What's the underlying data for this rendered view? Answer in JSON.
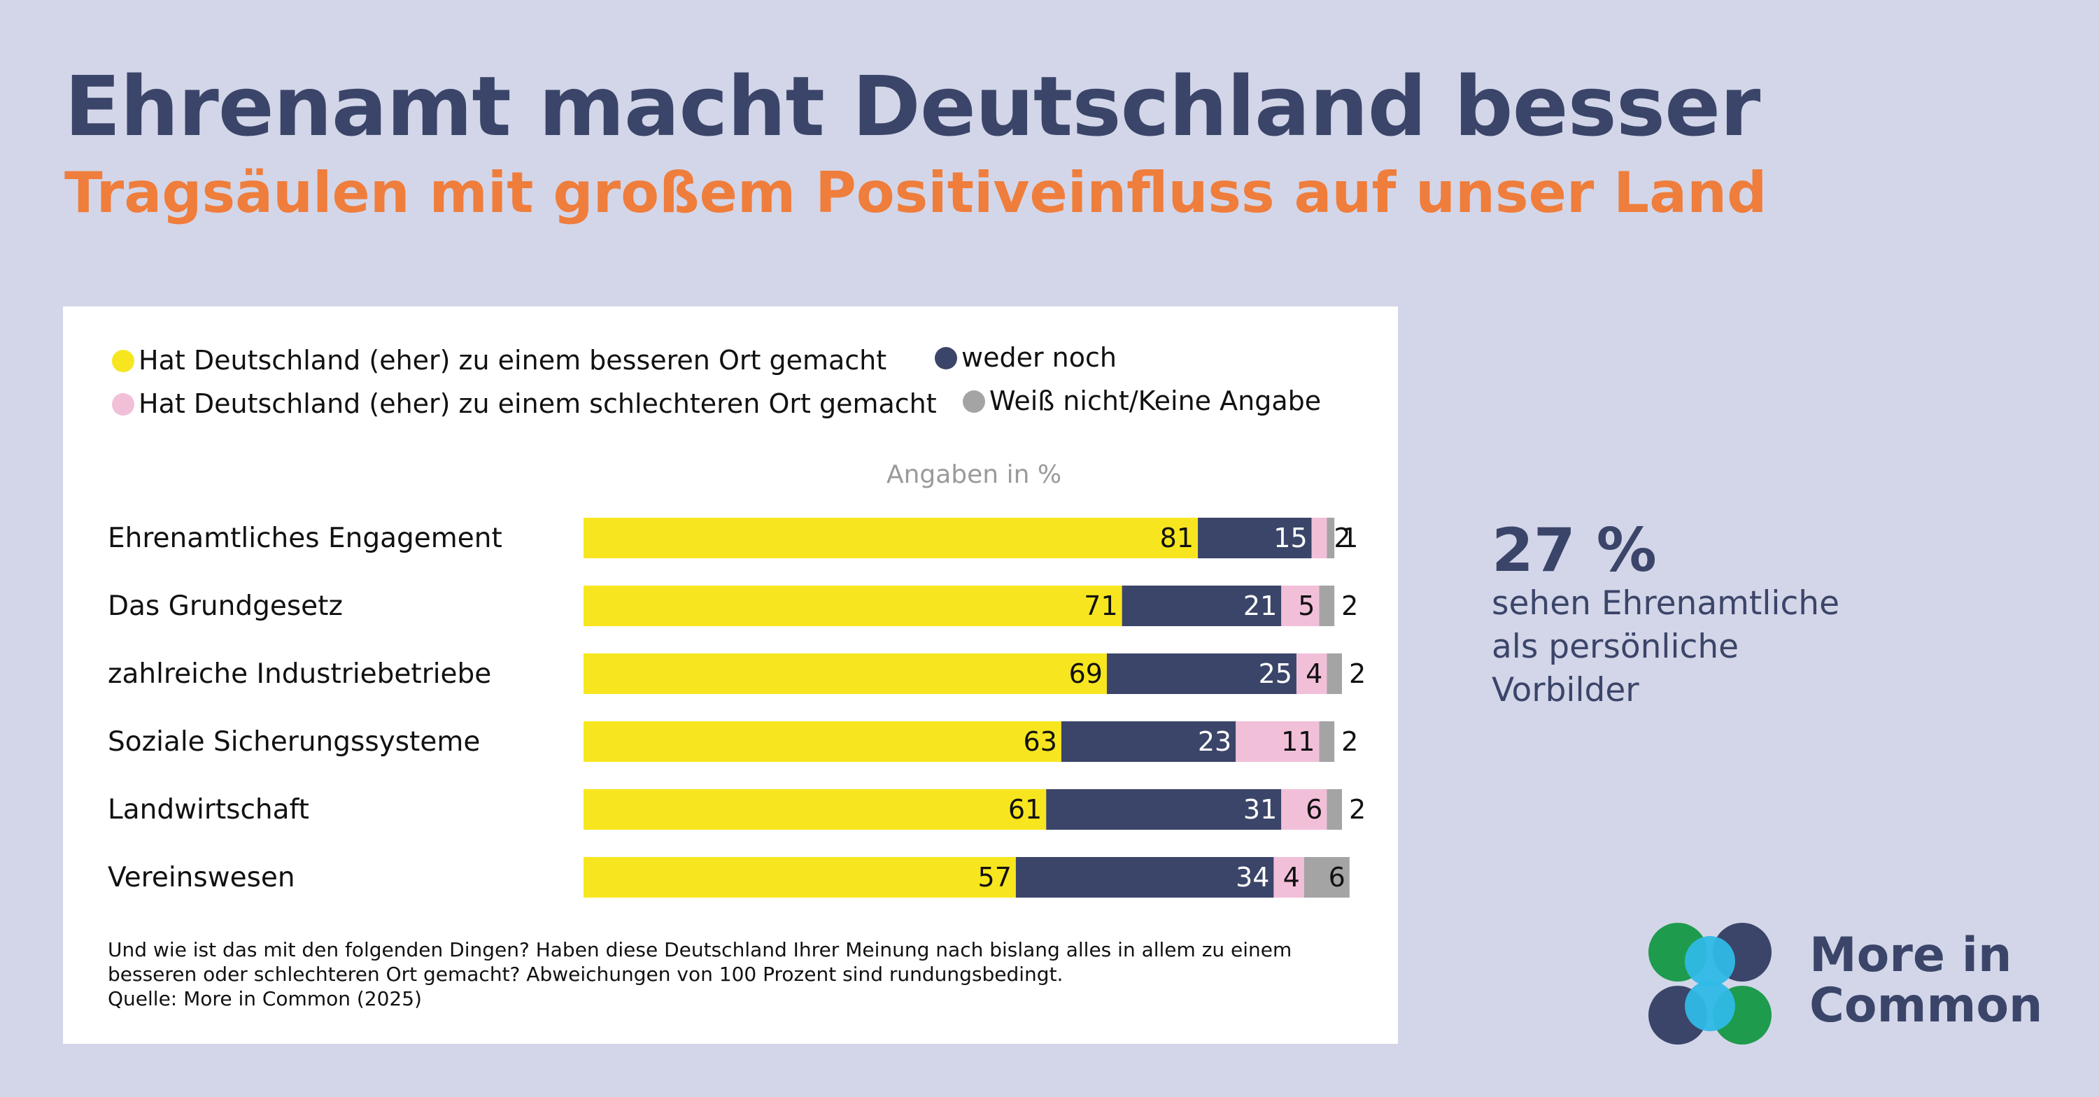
{
  "header": {
    "title": "Ehrenamt macht Deutschland besser",
    "subtitle": "Tragsäulen mit großem Positiveinfluss auf unser Land"
  },
  "colors": {
    "background": "#d3d6e8",
    "title": "#3b4569",
    "subtitle": "#ef7d3c",
    "better": "#f7e61f",
    "neither": "#3b4569",
    "worse": "#f2bfd9",
    "dontknow": "#a4a4a4",
    "logo_navy": "#3b4569",
    "logo_green": "#1f9b4d",
    "logo_cyan": "#2fb9e6"
  },
  "chart_data": {
    "type": "bar",
    "orientation": "horizontal",
    "stacked": true,
    "unit_label": "Angaben in %",
    "xlim": [
      0,
      100
    ],
    "grid": false,
    "legend_position": "top",
    "categories": [
      "Ehrenamtliches Engagement",
      "Das Grundgesetz",
      "zahlreiche Industriebetriebe",
      "Soziale Sicherungssysteme",
      "Landwirtschaft",
      "Vereinswesen"
    ],
    "series": [
      {
        "name": "Hat Deutschland (eher) zu einem besseren Ort gemacht",
        "color": "#f7e61f",
        "values": [
          81,
          71,
          69,
          63,
          61,
          57
        ]
      },
      {
        "name": "weder noch",
        "color": "#3b4569",
        "values": [
          15,
          21,
          25,
          23,
          31,
          34
        ]
      },
      {
        "name": "Hat Deutschland (eher) zu einem schlechteren Ort gemacht",
        "color": "#f2bfd9",
        "values": [
          2,
          5,
          4,
          11,
          6,
          4
        ]
      },
      {
        "name": "Weiß nicht/Keine Angabe",
        "color": "#a4a4a4",
        "values": [
          1,
          2,
          2,
          2,
          2,
          6
        ]
      }
    ]
  },
  "footnote": {
    "line1": "Und wie ist das mit den folgenden Dingen? Haben diese Deutschland Ihrer Meinung nach bislang alles in allem zu einem",
    "line2": "besseren oder schlechteren Ort gemacht? Abweichungen von 100 Prozent sind rundungsbedingt.",
    "source": "Quelle: More in Common (2025)"
  },
  "stat": {
    "value": "27 %",
    "line1": "sehen Ehrenamtliche",
    "line2": "als persönliche",
    "line3": "Vorbilder"
  },
  "logo": {
    "line1": "More in",
    "line2": "Common"
  }
}
